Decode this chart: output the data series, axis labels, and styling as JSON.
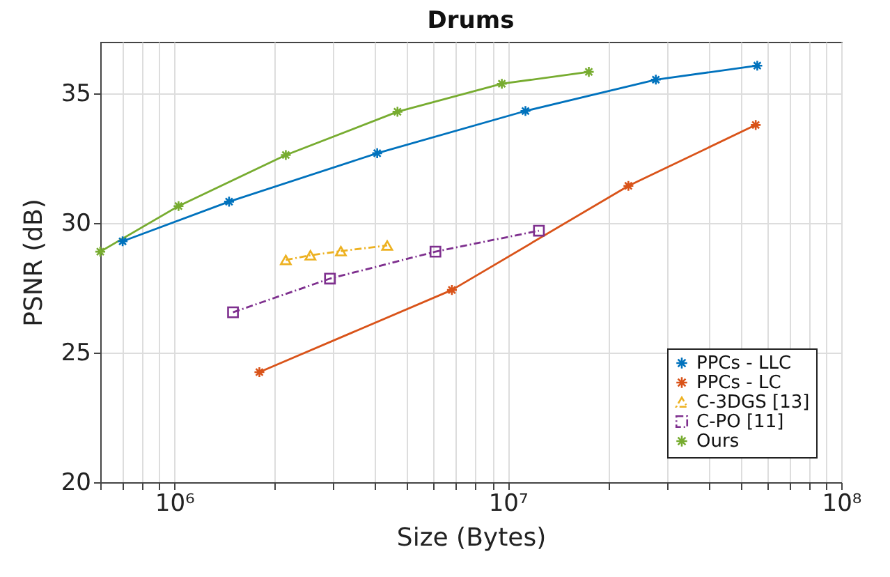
{
  "chart_data": {
    "type": "line",
    "title": "Drums",
    "xlabel": "Size (Bytes)",
    "ylabel": "PSNR (dB)",
    "log": "x",
    "grid": true,
    "legend": "bottom right",
    "xlim": [
      600000,
      100000000
    ],
    "ylim": [
      20,
      37
    ],
    "xticks": [
      {
        "value": 600000,
        "label": null
      },
      {
        "value": 700000,
        "label": null
      },
      {
        "value": 800000,
        "label": null
      },
      {
        "value": 900000,
        "label": null
      },
      {
        "value": 1000000,
        "label": "10⁶"
      },
      {
        "value": 2000000,
        "label": null
      },
      {
        "value": 3000000,
        "label": null
      },
      {
        "value": 4000000,
        "label": null
      },
      {
        "value": 5000000,
        "label": null
      },
      {
        "value": 6000000,
        "label": null
      },
      {
        "value": 7000000,
        "label": null
      },
      {
        "value": 8000000,
        "label": null
      },
      {
        "value": 9000000,
        "label": null
      },
      {
        "value": 10000000,
        "label": "10⁷"
      },
      {
        "value": 20000000,
        "label": null
      },
      {
        "value": 30000000,
        "label": null
      },
      {
        "value": 40000000,
        "label": null
      },
      {
        "value": 50000000,
        "label": null
      },
      {
        "value": 60000000,
        "label": null
      },
      {
        "value": 70000000,
        "label": null
      },
      {
        "value": 80000000,
        "label": null
      },
      {
        "value": 90000000,
        "label": null
      },
      {
        "value": 100000000,
        "label": "10⁸"
      }
    ],
    "yticks": [
      20,
      25,
      30,
      35
    ],
    "series": [
      {
        "name": "PPCs - LLC",
        "color": "#0072bd",
        "marker": "cross",
        "line_style": "solid",
        "x": [
          700000,
          1460000,
          4060000,
          11300000,
          27800000,
          56000000
        ],
        "values": [
          29.3,
          30.83,
          32.7,
          34.33,
          35.54,
          36.08
        ]
      },
      {
        "name": "PPCs - LC",
        "color": "#d95319",
        "marker": "cross",
        "line_style": "solid",
        "x": [
          1800000,
          6800000,
          23000000,
          55400000
        ],
        "values": [
          24.25,
          27.42,
          31.44,
          33.79
        ]
      },
      {
        "name": "C-3DGS [13]",
        "color": "#edb120",
        "marker": "triangle",
        "line_style": "dashed",
        "x": [
          2160000,
          2560000,
          3160000,
          4350000
        ],
        "values": [
          28.58,
          28.76,
          28.92,
          29.14
        ]
      },
      {
        "name": "C-PO [11]",
        "color": "#7e2f8e",
        "marker": "square",
        "line_style": "dashed",
        "x": [
          1500000,
          2930000,
          6070000,
          12400000
        ],
        "values": [
          26.56,
          27.86,
          28.9,
          29.71
        ]
      },
      {
        "name": "Ours",
        "color": "#77ac30",
        "marker": "cross",
        "line_style": "solid",
        "x": [
          600000,
          1030000,
          2160000,
          4670000,
          9600000,
          17500000
        ],
        "values": [
          28.9,
          30.66,
          32.63,
          34.3,
          35.38,
          35.84
        ]
      }
    ]
  }
}
